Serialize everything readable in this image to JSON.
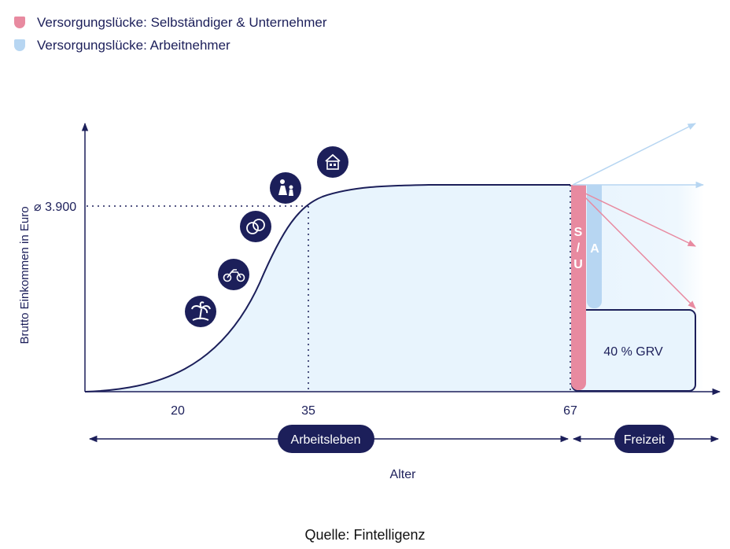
{
  "legend": [
    {
      "label": "Versorgungslücke: Selbständiger & Unternehmer",
      "color": "#e88aa0"
    },
    {
      "label": "Versorgungslücke: Arbeitnehmer",
      "color": "#b7d6f2"
    }
  ],
  "chart_data": {
    "type": "area",
    "ylabel": "Brutto Einkommen in Euro",
    "xlabel": "Alter",
    "y_marker": {
      "label": "⌀ 3.900",
      "value": 3900
    },
    "x_ticks": [
      "20",
      "35",
      "67"
    ],
    "phases": [
      {
        "label": "Arbeitsleben"
      },
      {
        "label": "Freizeit"
      }
    ],
    "gap_bars": [
      {
        "label_chars": [
          "S",
          "/",
          "U"
        ],
        "color": "#e88aa0",
        "group": "Selbständiger & Unternehmer"
      },
      {
        "label_chars": [
          "A"
        ],
        "color": "#b7d6f2",
        "group": "Arbeitnehmer"
      }
    ],
    "pension_box": {
      "label": "40 % GRV"
    },
    "milestone_icons": [
      "palm-tree-icon",
      "motorcycle-icon",
      "wedding-rings-icon",
      "family-icon",
      "house-icon"
    ],
    "colors": {
      "navy": "#1c1f5a",
      "area_fill": "#e8f4fd",
      "pink": "#e88aa0",
      "light_blue": "#b7d6f2"
    }
  },
  "source": "Quelle: Fintelligenz"
}
